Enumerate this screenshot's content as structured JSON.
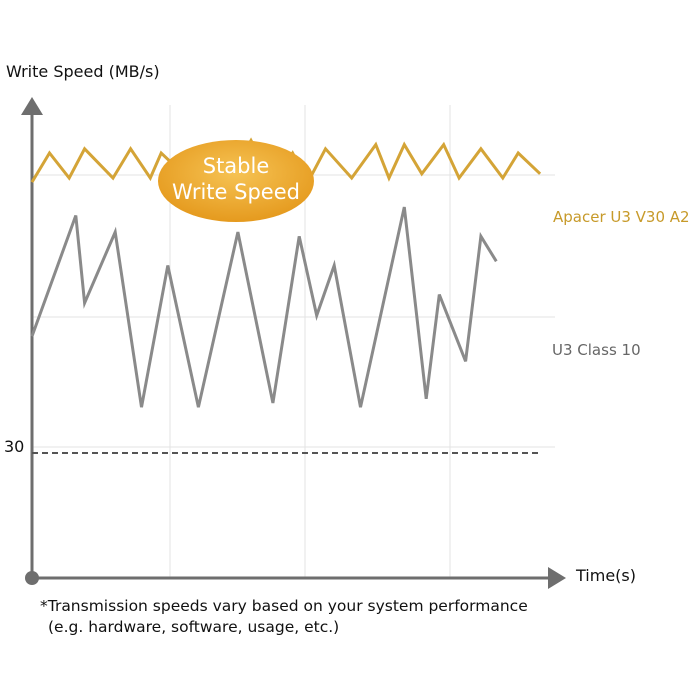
{
  "chart_data": {
    "type": "line",
    "ylabel": "Write Speed (MB/s)",
    "xlabel": "Time(s)",
    "y_ticks": [
      "30"
    ],
    "reference_line": {
      "value": 30,
      "style": "dashed"
    },
    "grid": true,
    "badge": [
      "Stable",
      "Write Speed"
    ],
    "series": [
      {
        "name": "Apacer U3 V30 A2",
        "color": "#d4a437",
        "x": [
          0,
          8,
          17,
          24,
          37,
          45,
          54,
          59,
          67,
          76,
          90,
          100,
          110,
          119,
          126,
          134,
          146,
          157,
          163,
          170,
          178,
          188,
          195,
          205,
          215,
          222,
          232
        ],
        "y": [
          95,
          102,
          96,
          103,
          96,
          103,
          96,
          102,
          98,
          103,
          96,
          105,
          95,
          102,
          95,
          103,
          96,
          104,
          96,
          104,
          97,
          104,
          96,
          103,
          96,
          102,
          97
        ]
      },
      {
        "name": "U3 Class 10",
        "color": "#8a8a8a",
        "x": [
          0,
          20,
          24,
          38,
          50,
          62,
          76,
          94,
          110,
          122,
          130,
          138,
          150,
          170,
          180,
          186,
          198,
          205,
          212
        ],
        "y": [
          58,
          87,
          66,
          83,
          41,
          75,
          41,
          83,
          42,
          82,
          63,
          75,
          41,
          89,
          43,
          68,
          52,
          82,
          76
        ]
      }
    ]
  },
  "footnote": {
    "line1": "*Transmission speeds vary based on your system performance",
    "line2": "(e.g. hardware, software, usage, etc.)"
  }
}
